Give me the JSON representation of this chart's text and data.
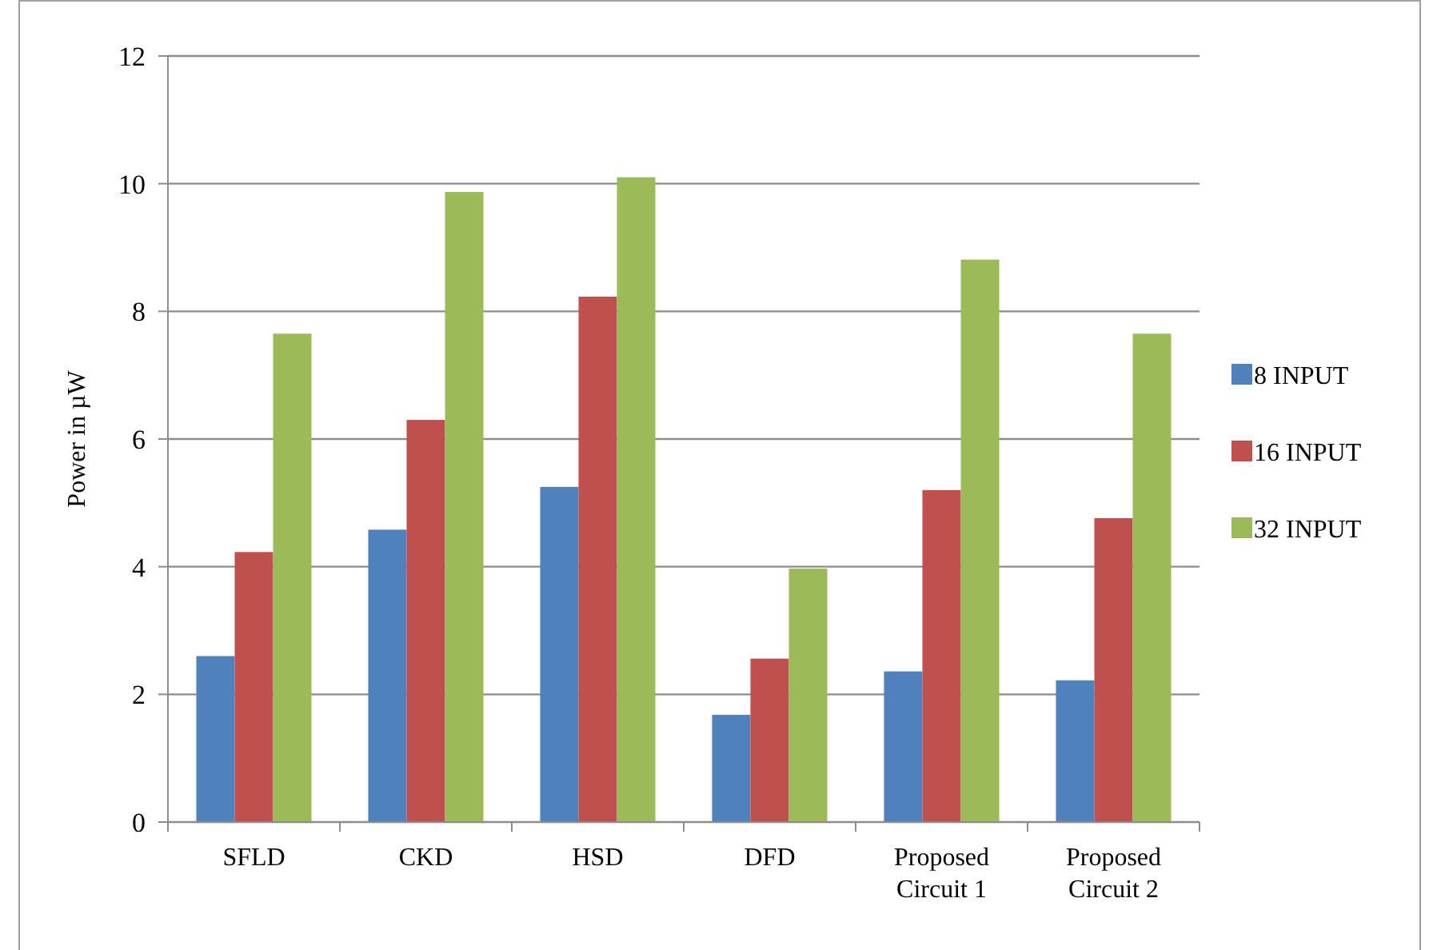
{
  "chart_data": {
    "type": "bar",
    "ylabel": "Power in µW",
    "categories": [
      "SFLD",
      "CKD",
      "HSD",
      "DFD",
      "Proposed Circuit 1",
      "Proposed Circuit 2"
    ],
    "series": [
      {
        "name": "8 INPUT",
        "color": "#4f81bd",
        "values": [
          2.6,
          4.58,
          5.25,
          1.68,
          2.36,
          2.22
        ]
      },
      {
        "name": "16 INPUT",
        "color": "#c0504d",
        "values": [
          4.23,
          6.3,
          8.23,
          2.56,
          5.2,
          4.76
        ]
      },
      {
        "name": "32 INPUT",
        "color": "#9bbb59",
        "values": [
          7.65,
          9.87,
          10.1,
          3.97,
          8.81,
          7.65
        ]
      }
    ],
    "ylim": [
      0,
      12
    ],
    "yticks": [
      0,
      2,
      4,
      6,
      8,
      10,
      12
    ],
    "grid": "y",
    "legend": "right"
  }
}
